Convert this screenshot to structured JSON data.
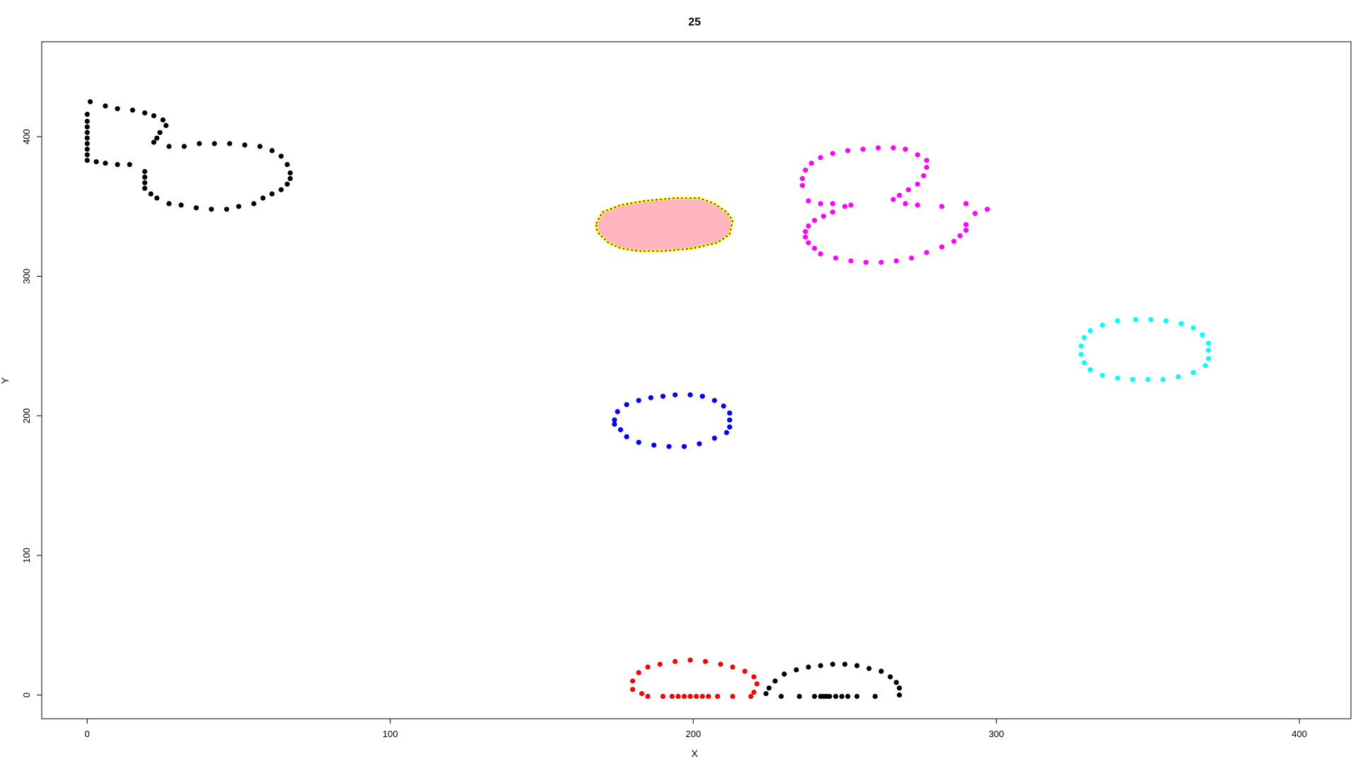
{
  "chart_data": {
    "type": "scatter",
    "title": "25",
    "xlabel": "X",
    "ylabel": "Y",
    "xlim": [
      -15,
      417
    ],
    "ylim": [
      -17,
      468
    ],
    "x_ticks": [
      0,
      100,
      200,
      300,
      400
    ],
    "y_ticks": [
      0,
      100,
      200,
      300,
      400
    ],
    "grid": false,
    "legend": "none",
    "series": [
      {
        "color": "#000000",
        "shape": "outline",
        "points": [
          [
            1,
            425
          ],
          [
            6,
            422
          ],
          [
            10,
            420
          ],
          [
            15,
            419
          ],
          [
            19,
            417
          ],
          [
            22,
            415
          ],
          [
            25,
            412
          ],
          [
            26,
            408
          ],
          [
            24,
            403
          ],
          [
            23,
            399
          ],
          [
            22,
            396
          ],
          [
            27,
            393
          ],
          [
            32,
            393
          ],
          [
            37,
            395
          ],
          [
            42,
            395
          ],
          [
            47,
            395
          ],
          [
            52,
            394
          ],
          [
            57,
            393
          ],
          [
            61,
            390
          ],
          [
            64,
            386
          ],
          [
            66,
            380
          ],
          [
            67,
            374
          ],
          [
            67,
            370
          ],
          [
            66,
            366
          ],
          [
            64,
            362
          ],
          [
            61,
            359
          ],
          [
            58,
            356
          ],
          [
            55,
            352
          ],
          [
            50,
            350
          ],
          [
            46,
            348
          ],
          [
            41,
            348
          ],
          [
            36,
            349
          ],
          [
            31,
            351
          ],
          [
            27,
            352
          ],
          [
            23,
            356
          ],
          [
            21,
            359
          ],
          [
            19,
            363
          ],
          [
            19,
            367
          ],
          [
            19,
            371
          ],
          [
            19,
            375
          ],
          [
            14,
            380
          ],
          [
            10,
            380
          ],
          [
            6,
            381
          ],
          [
            3,
            382
          ],
          [
            0,
            383
          ],
          [
            0,
            387
          ],
          [
            0,
            391
          ],
          [
            0,
            395
          ],
          [
            0,
            399
          ],
          [
            0,
            403
          ],
          [
            0,
            407
          ],
          [
            0,
            411
          ],
          [
            0,
            416
          ]
        ]
      },
      {
        "color": "#FF00FF",
        "shape": "outline",
        "points": [
          [
            236,
            365
          ],
          [
            236,
            370
          ],
          [
            237,
            376
          ],
          [
            239,
            381
          ],
          [
            242,
            385
          ],
          [
            246,
            388
          ],
          [
            251,
            390
          ],
          [
            256,
            391
          ],
          [
            261,
            392
          ],
          [
            266,
            392
          ],
          [
            270,
            391
          ],
          [
            274,
            387
          ],
          [
            277,
            383
          ],
          [
            277,
            378
          ],
          [
            276,
            372
          ],
          [
            274,
            366
          ],
          [
            271,
            362
          ],
          [
            268,
            358
          ],
          [
            266,
            355
          ],
          [
            270,
            352
          ],
          [
            274,
            351
          ],
          [
            282,
            350
          ],
          [
            290,
            352
          ],
          [
            293,
            345
          ],
          [
            297,
            348
          ],
          [
            290,
            337
          ],
          [
            290,
            333
          ],
          [
            288,
            329
          ],
          [
            286,
            325
          ],
          [
            282,
            321
          ],
          [
            277,
            317
          ],
          [
            272,
            313
          ],
          [
            267,
            311
          ],
          [
            262,
            310
          ],
          [
            257,
            310
          ],
          [
            252,
            311
          ],
          [
            247,
            313
          ],
          [
            242,
            316
          ],
          [
            240,
            320
          ],
          [
            238,
            324
          ],
          [
            237,
            328
          ],
          [
            237,
            332
          ],
          [
            238,
            336
          ],
          [
            240,
            340
          ],
          [
            243,
            343
          ],
          [
            246,
            346
          ],
          [
            250,
            350
          ],
          [
            252,
            351
          ],
          [
            246,
            352
          ],
          [
            242,
            352
          ],
          [
            238,
            354
          ]
        ]
      },
      {
        "color": "#000000",
        "shape": "filled-dashed",
        "fill": "#FFB6C1",
        "stroke": "#FFFF00",
        "points": [
          [
            168,
            338
          ],
          [
            170,
            346
          ],
          [
            176,
            351
          ],
          [
            184,
            354
          ],
          [
            194,
            356
          ],
          [
            202,
            356
          ],
          [
            207,
            352
          ],
          [
            211,
            346
          ],
          [
            213,
            340
          ],
          [
            212,
            330
          ],
          [
            208,
            324
          ],
          [
            200,
            320
          ],
          [
            190,
            318
          ],
          [
            182,
            318
          ],
          [
            176,
            320
          ],
          [
            172,
            324
          ],
          [
            169,
            330
          ],
          [
            168,
            334
          ]
        ]
      },
      {
        "color": "#00FFFF",
        "shape": "outline",
        "points": [
          [
            328,
            250
          ],
          [
            329,
            256
          ],
          [
            331,
            261
          ],
          [
            335,
            265
          ],
          [
            340,
            268
          ],
          [
            346,
            269
          ],
          [
            351,
            269
          ],
          [
            356,
            268
          ],
          [
            361,
            266
          ],
          [
            365,
            263
          ],
          [
            368,
            258
          ],
          [
            370,
            252
          ],
          [
            370,
            247
          ],
          [
            370,
            241
          ],
          [
            369,
            236
          ],
          [
            365,
            231
          ],
          [
            360,
            228
          ],
          [
            355,
            226
          ],
          [
            350,
            226
          ],
          [
            345,
            226
          ],
          [
            340,
            227
          ],
          [
            335,
            229
          ],
          [
            331,
            233
          ],
          [
            329,
            238
          ],
          [
            328,
            244
          ]
        ]
      },
      {
        "color": "#0000FF",
        "shape": "outline",
        "points": [
          [
            174,
            197
          ],
          [
            175,
            203
          ],
          [
            178,
            208
          ],
          [
            182,
            211
          ],
          [
            186,
            213
          ],
          [
            190,
            214
          ],
          [
            194,
            215
          ],
          [
            199,
            215
          ],
          [
            203,
            214
          ],
          [
            207,
            211
          ],
          [
            210,
            207
          ],
          [
            212,
            202
          ],
          [
            212,
            197
          ],
          [
            212,
            192
          ],
          [
            211,
            188
          ],
          [
            207,
            184
          ],
          [
            202,
            180
          ],
          [
            197,
            178
          ],
          [
            192,
            178
          ],
          [
            187,
            179
          ],
          [
            182,
            181
          ],
          [
            178,
            185
          ],
          [
            176,
            190
          ],
          [
            174,
            194
          ]
        ]
      },
      {
        "color": "#FF0000",
        "shape": "outline",
        "points": [
          [
            180,
            4
          ],
          [
            180,
            10
          ],
          [
            182,
            16
          ],
          [
            185,
            20
          ],
          [
            189,
            22
          ],
          [
            194,
            24
          ],
          [
            199,
            25
          ],
          [
            204,
            24
          ],
          [
            209,
            22
          ],
          [
            213,
            20
          ],
          [
            217,
            17
          ],
          [
            220,
            13
          ],
          [
            221,
            8
          ],
          [
            220,
            2
          ],
          [
            219,
            -1
          ],
          [
            213,
            -1
          ],
          [
            208,
            -1
          ],
          [
            205,
            -1
          ],
          [
            203,
            -1
          ],
          [
            201,
            -1
          ],
          [
            199,
            -1
          ],
          [
            197,
            -1
          ],
          [
            195,
            -1
          ],
          [
            193,
            -1
          ],
          [
            190,
            -1
          ],
          [
            185,
            -1
          ],
          [
            183,
            1
          ]
        ]
      },
      {
        "color": "#000000",
        "shape": "outline",
        "points": [
          [
            224,
            1
          ],
          [
            225,
            5
          ],
          [
            227,
            10
          ],
          [
            230,
            15
          ],
          [
            234,
            18
          ],
          [
            238,
            20
          ],
          [
            242,
            21
          ],
          [
            246,
            22
          ],
          [
            250,
            22
          ],
          [
            254,
            21
          ],
          [
            258,
            19
          ],
          [
            262,
            17
          ],
          [
            265,
            13
          ],
          [
            267,
            9
          ],
          [
            268,
            5
          ],
          [
            268,
            0
          ],
          [
            260,
            -1
          ],
          [
            254,
            -1
          ],
          [
            251,
            -1
          ],
          [
            249,
            -1
          ],
          [
            247,
            -1
          ],
          [
            245,
            -1
          ],
          [
            244,
            -1
          ],
          [
            243,
            -1
          ],
          [
            242,
            -1
          ],
          [
            240,
            -1
          ],
          [
            235,
            -1
          ],
          [
            229,
            -1
          ]
        ]
      }
    ]
  }
}
